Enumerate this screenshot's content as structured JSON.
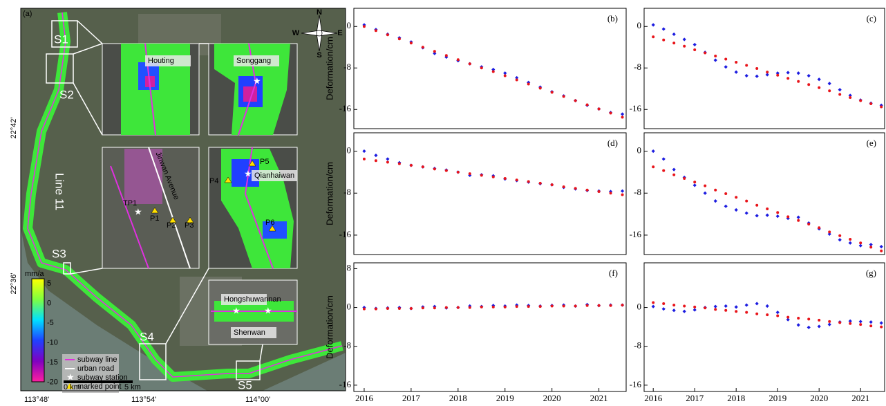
{
  "map": {
    "panel_label": "(a)",
    "sections": [
      "S1",
      "S2",
      "S3",
      "S4",
      "S5"
    ],
    "line_label": "Line 11",
    "insets": {
      "houting": "Houting",
      "songgang": "Songgang",
      "road": "Jinwan Avenue",
      "points": [
        "TP1",
        "P1",
        "P2",
        "P3",
        "P4",
        "P5",
        "P6"
      ],
      "qianhaiwan": "Qianhaiwan",
      "hongshuwannan": "Hongshuwannan",
      "shenwan": "Shenwan"
    },
    "colorbar": {
      "unit": "mm/a",
      "ticks": [
        5,
        0,
        -5,
        -10,
        -15,
        -20
      ]
    },
    "legend": [
      "subway line",
      "urban road",
      "subway station",
      "marked point"
    ],
    "scale": [
      "0 km",
      "5 km"
    ],
    "lon_labels": [
      "113°48'",
      "113°54'",
      "114°00'"
    ],
    "lat_labels": [
      "22°42'",
      "22°36'"
    ],
    "compass": [
      "N",
      "S",
      "W",
      "E"
    ]
  },
  "chart_data": [
    {
      "type": "scatter",
      "panel_label": "(b)",
      "y_label": "Deformation/cm",
      "x": [
        2016,
        2016.25,
        2016.5,
        2016.75,
        2017,
        2017.25,
        2017.5,
        2017.75,
        2018,
        2018.25,
        2018.5,
        2018.75,
        2019,
        2019.25,
        2019.5,
        2019.75,
        2020,
        2020.25,
        2020.5,
        2020.75,
        2021,
        2021.25,
        2021.5
      ],
      "xlim": [
        2015.78,
        2021.58
      ],
      "ylim": [
        -19.7,
        3.5
      ],
      "yticks": [
        0,
        -8,
        -16
      ],
      "series": [
        {
          "color": "#1c1ce0",
          "values": [
            0.3,
            -0.6,
            -1.5,
            -2.2,
            -3.0,
            -4.1,
            -5.2,
            -5.9,
            -6.6,
            -7.2,
            -7.8,
            -8.3,
            -9.0,
            -9.9,
            -10.8,
            -11.7,
            -12.6,
            -13.4,
            -14.3,
            -15.2,
            -15.9,
            -16.6,
            -16.9
          ]
        },
        {
          "color": "#e8141a",
          "values": [
            0,
            -0.8,
            -1.6,
            -2.4,
            -3.2,
            -4.0,
            -4.8,
            -5.6,
            -6.4,
            -7.2,
            -8.0,
            -8.7,
            -9.5,
            -10.3,
            -11.1,
            -11.9,
            -12.7,
            -13.5,
            -14.3,
            -15.1,
            -15.9,
            -16.7,
            -17.5
          ]
        }
      ]
    },
    {
      "type": "scatter",
      "panel_label": "(c)",
      "x": [
        2016,
        2016.25,
        2016.5,
        2016.75,
        2017,
        2017.25,
        2017.5,
        2017.75,
        2018,
        2018.25,
        2018.5,
        2018.75,
        2019,
        2019.25,
        2019.5,
        2019.75,
        2020,
        2020.25,
        2020.5,
        2020.75,
        2021,
        2021.25,
        2021.5
      ],
      "xlim": [
        2015.78,
        2021.58
      ],
      "ylim": [
        -19.7,
        3.5
      ],
      "yticks": [
        0,
        -8,
        -16
      ],
      "series": [
        {
          "color": "#1c1ce0",
          "values": [
            0.3,
            -0.5,
            -1.5,
            -2.5,
            -3.5,
            -5.0,
            -6.5,
            -7.8,
            -8.8,
            -9.5,
            -9.6,
            -9.3,
            -9.0,
            -8.9,
            -9.0,
            -9.5,
            -10.2,
            -11.0,
            -12.2,
            -13.3,
            -14.2,
            -14.8,
            -15.2
          ]
        },
        {
          "color": "#e8141a",
          "values": [
            -2.0,
            -2.6,
            -3.2,
            -3.8,
            -4.5,
            -5.1,
            -5.7,
            -6.3,
            -6.9,
            -7.5,
            -8.1,
            -8.8,
            -9.4,
            -10.0,
            -10.6,
            -11.2,
            -11.8,
            -12.4,
            -13.1,
            -13.7,
            -14.3,
            -14.9,
            -15.5
          ]
        }
      ]
    },
    {
      "type": "scatter",
      "panel_label": "(d)",
      "y_label": "Deformation/cm",
      "x": [
        2016,
        2016.25,
        2016.5,
        2016.75,
        2017,
        2017.25,
        2017.5,
        2017.75,
        2018,
        2018.25,
        2018.5,
        2018.75,
        2019,
        2019.25,
        2019.5,
        2019.75,
        2020,
        2020.25,
        2020.5,
        2020.75,
        2021,
        2021.25,
        2021.5
      ],
      "xlim": [
        2015.78,
        2021.58
      ],
      "ylim": [
        -19.7,
        3.5
      ],
      "yticks": [
        0,
        -8,
        -16
      ],
      "series": [
        {
          "color": "#1c1ce0",
          "values": [
            0,
            -0.8,
            -1.5,
            -2.2,
            -2.7,
            -3.0,
            -3.3,
            -3.6,
            -4.0,
            -4.6,
            -4.5,
            -4.7,
            -5.3,
            -5.6,
            -5.9,
            -6.2,
            -6.4,
            -6.9,
            -7.2,
            -7.5,
            -7.6,
            -7.7,
            -7.6
          ]
        },
        {
          "color": "#e8141a",
          "values": [
            -1.5,
            -1.8,
            -2.1,
            -2.4,
            -2.7,
            -3.0,
            -3.4,
            -3.7,
            -4.0,
            -4.3,
            -4.6,
            -4.9,
            -5.2,
            -5.5,
            -5.8,
            -6.1,
            -6.4,
            -6.8,
            -7.1,
            -7.4,
            -7.7,
            -8.0,
            -8.3
          ]
        }
      ]
    },
    {
      "type": "scatter",
      "panel_label": "(e)",
      "x": [
        2016,
        2016.25,
        2016.5,
        2016.75,
        2017,
        2017.25,
        2017.5,
        2017.75,
        2018,
        2018.25,
        2018.5,
        2018.75,
        2019,
        2019.25,
        2019.5,
        2019.75,
        2020,
        2020.25,
        2020.5,
        2020.75,
        2021,
        2021.25,
        2021.5
      ],
      "xlim": [
        2015.78,
        2021.58
      ],
      "ylim": [
        -19.7,
        3.5
      ],
      "yticks": [
        0,
        -8,
        -16
      ],
      "series": [
        {
          "color": "#1c1ce0",
          "values": [
            0,
            -1.5,
            -3.5,
            -5.0,
            -6.5,
            -8.0,
            -9.5,
            -10.5,
            -11.2,
            -11.8,
            -12.3,
            -12.2,
            -12.4,
            -12.8,
            -12.6,
            -13.7,
            -14.8,
            -15.8,
            -16.9,
            -17.5,
            -18.0,
            -17.8,
            -18.2
          ]
        },
        {
          "color": "#e8141a",
          "values": [
            -3.0,
            -3.7,
            -4.5,
            -5.2,
            -5.9,
            -6.6,
            -7.4,
            -8.1,
            -8.8,
            -9.5,
            -10.3,
            -11.0,
            -11.7,
            -12.5,
            -13.2,
            -13.9,
            -14.6,
            -15.4,
            -16.1,
            -16.8,
            -17.5,
            -18.3,
            -19.0
          ]
        }
      ]
    },
    {
      "type": "scatter",
      "panel_label": "(f)",
      "y_label": "Deformation/cm",
      "x": [
        2016,
        2016.25,
        2016.5,
        2016.75,
        2017,
        2017.25,
        2017.5,
        2017.75,
        2018,
        2018.25,
        2018.5,
        2018.75,
        2019,
        2019.25,
        2019.5,
        2019.75,
        2020,
        2020.25,
        2020.5,
        2020.75,
        2021,
        2021.25,
        2021.5
      ],
      "xlim": [
        2015.78,
        2021.58
      ],
      "ylim": [
        -17.3,
        9.2
      ],
      "yticks": [
        8,
        0,
        -8,
        -16
      ],
      "xticks": [
        2016,
        2017,
        2018,
        2019,
        2020,
        2021
      ],
      "series": [
        {
          "color": "#1c1ce0",
          "values": [
            0,
            -0.2,
            -0.1,
            0,
            -0.2,
            0.1,
            0.2,
            -0.1,
            0,
            0.3,
            0.2,
            0.4,
            0.3,
            0.5,
            0.4,
            0.3,
            0.4,
            0.5,
            0.3,
            0.6,
            0.4,
            0.5,
            0.5
          ]
        },
        {
          "color": "#e8141a",
          "values": [
            -0.3,
            -0.3,
            -0.2,
            -0.2,
            -0.2,
            -0.1,
            -0.1,
            0,
            0,
            0,
            0.1,
            0.1,
            0.1,
            0.2,
            0.2,
            0.2,
            0.3,
            0.3,
            0.3,
            0.4,
            0.4,
            0.4,
            0.5
          ]
        }
      ]
    },
    {
      "type": "scatter",
      "panel_label": "(g)",
      "x": [
        2016,
        2016.25,
        2016.5,
        2016.75,
        2017,
        2017.25,
        2017.5,
        2017.75,
        2018,
        2018.25,
        2018.5,
        2018.75,
        2019,
        2019.25,
        2019.5,
        2019.75,
        2020,
        2020.25,
        2020.5,
        2020.75,
        2021,
        2021.25,
        2021.5
      ],
      "xlim": [
        2015.78,
        2021.58
      ],
      "ylim": [
        -17.3,
        9.2
      ],
      "yticks": [
        0,
        -8,
        -16
      ],
      "xticks": [
        2016,
        2017,
        2018,
        2019,
        2020,
        2021
      ],
      "series": [
        {
          "color": "#1c1ce0",
          "values": [
            0.2,
            -0.3,
            -0.6,
            -0.8,
            -0.5,
            0,
            0.2,
            0.3,
            0.1,
            0.5,
            0.8,
            0.3,
            -1.0,
            -2.5,
            -3.6,
            -4.1,
            -3.9,
            -3.5,
            -3.0,
            -2.8,
            -2.9,
            -3.0,
            -3.2
          ]
        },
        {
          "color": "#e8141a",
          "values": [
            1.0,
            0.8,
            0.5,
            0.3,
            0.1,
            -0.1,
            -0.4,
            -0.6,
            -0.8,
            -1.0,
            -1.3,
            -1.5,
            -1.7,
            -2.0,
            -2.2,
            -2.4,
            -2.6,
            -2.9,
            -3.1,
            -3.3,
            -3.5,
            -3.8,
            -4.0
          ]
        }
      ]
    }
  ]
}
